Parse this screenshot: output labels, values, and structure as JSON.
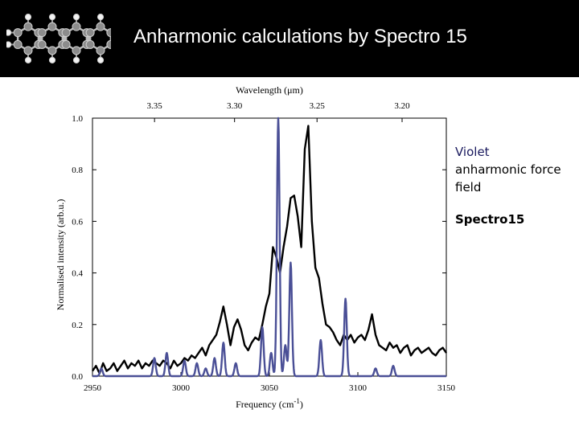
{
  "slide": {
    "title": "Anharmonic calculations by Spectro 15",
    "legend_violet_word": "Violet",
    "legend_violet_rest": "anharmonic force field",
    "legend_spectro": "Spectro15"
  },
  "colors": {
    "header_bg": "#000000",
    "experiment": "#000000",
    "calc": "#4a4f96"
  },
  "chart_data": {
    "type": "line",
    "xlabel": "Frequency (cm⁻¹)",
    "ylabel": "Normalised intensity (arb.u.)",
    "top_axis_label": "Wavelength (μm)",
    "xlim": [
      2950,
      3150
    ],
    "ylim": [
      0,
      1.0
    ],
    "x_ticks": [
      2950,
      3000,
      3050,
      3100,
      3150
    ],
    "x_tick_labels": [
      "2950",
      "3000",
      "3050",
      "3100",
      "3150"
    ],
    "y_ticks": [
      0.0,
      0.2,
      0.4,
      0.6,
      0.8,
      1.0
    ],
    "y_tick_labels": [
      "0.0",
      "0.2",
      "0.4",
      "0.6",
      "0.8",
      "1.0"
    ],
    "top_ticks": [
      3.35,
      3.3,
      3.25,
      3.2
    ],
    "top_tick_labels": [
      "3.35",
      "3.30",
      "3.25",
      "3.20"
    ],
    "grid": false,
    "series": [
      {
        "color": "#000000",
        "x": [
          2950,
          2952,
          2954,
          2956,
          2958,
          2960,
          2962,
          2964,
          2966,
          2968,
          2970,
          2972,
          2974,
          2976,
          2978,
          2980,
          2982,
          2984,
          2986,
          2988,
          2990,
          2992,
          2994,
          2996,
          2998,
          3000,
          3002,
          3004,
          3006,
          3008,
          3010,
          3012,
          3014,
          3016,
          3018,
          3020,
          3022,
          3024,
          3026,
          3028,
          3030,
          3032,
          3034,
          3036,
          3038,
          3040,
          3042,
          3044,
          3046,
          3048,
          3050,
          3052,
          3054,
          3056,
          3058,
          3060,
          3062,
          3064,
          3066,
          3068,
          3070,
          3072,
          3074,
          3076,
          3078,
          3080,
          3082,
          3084,
          3086,
          3088,
          3090,
          3092,
          3094,
          3096,
          3098,
          3100,
          3102,
          3104,
          3106,
          3108,
          3110,
          3112,
          3114,
          3116,
          3118,
          3120,
          3122,
          3124,
          3126,
          3128,
          3130,
          3132,
          3134,
          3136,
          3138,
          3140,
          3142,
          3144,
          3146,
          3148,
          3150
        ],
        "values": [
          0.02,
          0.04,
          0.01,
          0.05,
          0.02,
          0.03,
          0.05,
          0.02,
          0.04,
          0.06,
          0.03,
          0.05,
          0.04,
          0.06,
          0.03,
          0.05,
          0.04,
          0.06,
          0.05,
          0.04,
          0.06,
          0.05,
          0.03,
          0.06,
          0.04,
          0.05,
          0.07,
          0.06,
          0.08,
          0.07,
          0.09,
          0.11,
          0.08,
          0.12,
          0.14,
          0.16,
          0.21,
          0.27,
          0.2,
          0.12,
          0.19,
          0.22,
          0.18,
          0.12,
          0.1,
          0.13,
          0.15,
          0.14,
          0.2,
          0.27,
          0.32,
          0.5,
          0.46,
          0.4,
          0.5,
          0.58,
          0.69,
          0.7,
          0.62,
          0.5,
          0.88,
          0.97,
          0.6,
          0.42,
          0.38,
          0.28,
          0.2,
          0.19,
          0.17,
          0.14,
          0.12,
          0.16,
          0.14,
          0.16,
          0.13,
          0.15,
          0.16,
          0.14,
          0.18,
          0.24,
          0.16,
          0.12,
          0.11,
          0.1,
          0.13,
          0.11,
          0.12,
          0.09,
          0.11,
          0.12,
          0.08,
          0.1,
          0.11,
          0.09,
          0.1,
          0.11,
          0.09,
          0.08,
          0.1,
          0.11,
          0.09
        ]
      },
      {
        "color": "#4a4f96",
        "peaks": [
          {
            "x": 2955,
            "h": 0.03
          },
          {
            "x": 2985,
            "h": 0.07
          },
          {
            "x": 2992,
            "h": 0.09
          },
          {
            "x": 3002,
            "h": 0.06
          },
          {
            "x": 3009,
            "h": 0.05
          },
          {
            "x": 3014,
            "h": 0.03
          },
          {
            "x": 3019,
            "h": 0.07
          },
          {
            "x": 3024,
            "h": 0.13
          },
          {
            "x": 3031,
            "h": 0.05
          },
          {
            "x": 3046,
            "h": 0.19
          },
          {
            "x": 3051,
            "h": 0.09
          },
          {
            "x": 3055,
            "h": 1.0
          },
          {
            "x": 3059,
            "h": 0.12
          },
          {
            "x": 3062,
            "h": 0.44
          },
          {
            "x": 3079,
            "h": 0.14
          },
          {
            "x": 3093,
            "h": 0.3
          },
          {
            "x": 3110,
            "h": 0.03
          },
          {
            "x": 3120,
            "h": 0.04
          }
        ]
      }
    ]
  }
}
